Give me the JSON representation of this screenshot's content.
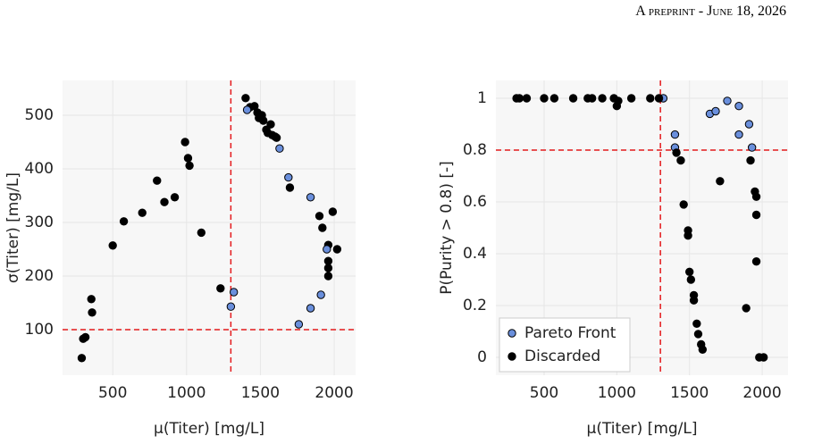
{
  "header": "A preprint - June 18, 2026",
  "chart_data": [
    {
      "type": "scatter",
      "xlabel": "μ(Titer) [mg/L]",
      "ylabel": "σ(Titer) [mg/L]",
      "xlim": [
        160,
        2145
      ],
      "ylim": [
        15,
        565
      ],
      "xticks": [
        500,
        1000,
        1500,
        2000
      ],
      "yticks": [
        100,
        200,
        300,
        400,
        500
      ],
      "grid": true,
      "vline": 1300,
      "hline": 100,
      "ref_color": "#e41a1c",
      "series": [
        {
          "color": "#000000",
          "x": [
            290,
            300,
            315,
            355,
            360,
            500,
            575,
            700,
            800,
            850,
            920,
            990,
            1010,
            1020,
            1100,
            1230,
            1400,
            1430,
            1460,
            1480,
            1490,
            1510,
            1520,
            1540,
            1550,
            1570,
            1580,
            1600,
            1610,
            1700,
            1900,
            1920,
            1960,
            1960,
            1960,
            1960,
            1990,
            2020
          ],
          "values": [
            47,
            83,
            86,
            157,
            132,
            257,
            302,
            318,
            378,
            338,
            347,
            450,
            420,
            406,
            281,
            177,
            532,
            515,
            517,
            505,
            495,
            500,
            490,
            473,
            467,
            483,
            463,
            460,
            458,
            365,
            312,
            290,
            258,
            228,
            215,
            200,
            320,
            250
          ]
        },
        {
          "color": "#6a8fdc",
          "x": [
            1300,
            1320,
            1410,
            1630,
            1690,
            1840,
            1950,
            1910,
            1840,
            1760
          ],
          "values": [
            143,
            170,
            510,
            438,
            384,
            347,
            250,
            165,
            140,
            110
          ]
        }
      ]
    },
    {
      "type": "scatter",
      "xlabel": "μ(Titer) [mg/L]",
      "ylabel": "P(Purity > 0.8) [-]",
      "xlim": [
        168,
        2178
      ],
      "ylim": [
        -0.069,
        1.069
      ],
      "xticks": [
        500,
        1000,
        1500,
        2000
      ],
      "yticks": [
        0,
        0.2,
        0.4,
        0.6,
        0.8,
        1
      ],
      "grid": true,
      "vline": 1300,
      "hline": 0.8,
      "ref_color": "#e41a1c",
      "legend": "lower left",
      "series": [
        {
          "name": "Pareto Front",
          "color": "#6a8fdc",
          "x": [
            1320,
            1400,
            1400,
            1640,
            1680,
            1760,
            1840,
            1840,
            1910,
            1930
          ],
          "values": [
            1,
            0.86,
            0.81,
            0.94,
            0.95,
            0.99,
            0.97,
            0.86,
            0.9,
            0.81
          ]
        },
        {
          "name": "Discarded",
          "color": "#000000",
          "x": [
            310,
            330,
            380,
            500,
            570,
            700,
            800,
            830,
            900,
            980,
            1000,
            1010,
            1100,
            1230,
            1290,
            1410,
            1440,
            1460,
            1490,
            1490,
            1500,
            1510,
            1530,
            1530,
            1550,
            1560,
            1580,
            1590,
            1710,
            1890,
            1920,
            1950,
            1960,
            1960,
            1960,
            1980,
            2010
          ],
          "values": [
            1,
            1,
            1,
            1,
            1,
            1,
            1,
            1,
            1,
            1,
            0.97,
            0.99,
            1,
            1,
            1,
            0.79,
            0.76,
            0.59,
            0.49,
            0.47,
            0.33,
            0.3,
            0.24,
            0.22,
            0.13,
            0.09,
            0.05,
            0.03,
            0.68,
            0.19,
            0.76,
            0.64,
            0.62,
            0.55,
            0.37,
            0,
            0
          ]
        }
      ]
    }
  ]
}
